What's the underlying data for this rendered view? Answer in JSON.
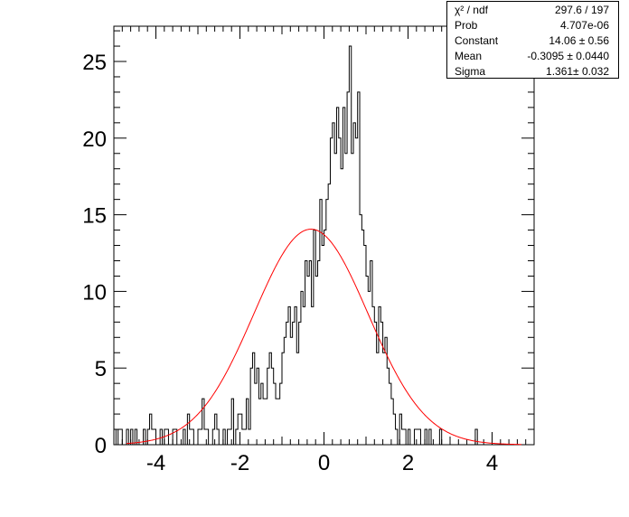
{
  "chart_data": {
    "type": "bar",
    "title": "",
    "xlabel": "",
    "ylabel": "",
    "xlim": [
      -5,
      5
    ],
    "ylim": [
      0,
      27.3
    ],
    "bins": 200,
    "x_ticks": [
      "-4",
      "-2",
      "0",
      "2",
      "4"
    ],
    "y_ticks": [
      "0",
      "5",
      "10",
      "15",
      "20",
      "25"
    ],
    "histogram": {
      "bin_edges_start": -5,
      "bin_width": 0.05,
      "counts": [
        1,
        0,
        1,
        1,
        0,
        0,
        1,
        0,
        1,
        0,
        1,
        0,
        0,
        0,
        1,
        0,
        1,
        2,
        1,
        1,
        0,
        0,
        1,
        0,
        1,
        1,
        0,
        0,
        1,
        1,
        0,
        0,
        0,
        1,
        0,
        2,
        1,
        1,
        0,
        0,
        1,
        1,
        3,
        1,
        1,
        0,
        0,
        1,
        2,
        1,
        0,
        0,
        1,
        0,
        1,
        1,
        3,
        0,
        1,
        2,
        2,
        1,
        1,
        3,
        1,
        5,
        6,
        4,
        5,
        3,
        4,
        3,
        3,
        5,
        6,
        5,
        4,
        3,
        3,
        4,
        6,
        7,
        8,
        9,
        7,
        8,
        9,
        6,
        8,
        10,
        9,
        12,
        11,
        12,
        9,
        14,
        11,
        12,
        16,
        13,
        14,
        16,
        17,
        20,
        21,
        19,
        22,
        20,
        18,
        22,
        19,
        23,
        26,
        19,
        21,
        20,
        23,
        15,
        14,
        13,
        11,
        10,
        12,
        9,
        8,
        6,
        9,
        8,
        6,
        7,
        5,
        4,
        3,
        2,
        1,
        0,
        2,
        1,
        1,
        0,
        1,
        0,
        0,
        1,
        1,
        1,
        0,
        0,
        1,
        0,
        1,
        0,
        0,
        0,
        0,
        1,
        0,
        0,
        0,
        0,
        0,
        0,
        0,
        0,
        0,
        0,
        0,
        0,
        0,
        0,
        0,
        0,
        1,
        0,
        0,
        0,
        0,
        0,
        0,
        0,
        0,
        0,
        0,
        0,
        0,
        0,
        0,
        0,
        0,
        0,
        0,
        0,
        0,
        0,
        0,
        0,
        0,
        0,
        0,
        0
      ]
    },
    "fit": {
      "function": "gaus",
      "constant": 14.06,
      "mean": -0.3095,
      "sigma": 1.361,
      "color": "#ff0000"
    },
    "histogram_color": "#000000"
  },
  "stats_box": {
    "rows": [
      {
        "name": "χ² / ndf",
        "value": "297.6 / 197"
      },
      {
        "name": "Prob",
        "value": "4.707e-06"
      },
      {
        "name": "Constant",
        "value": "14.06 ± 0.56"
      },
      {
        "name": "Mean",
        "value": "-0.3095 ± 0.0440"
      },
      {
        "name": "Sigma",
        "value": "1.361± 0.032"
      }
    ]
  }
}
